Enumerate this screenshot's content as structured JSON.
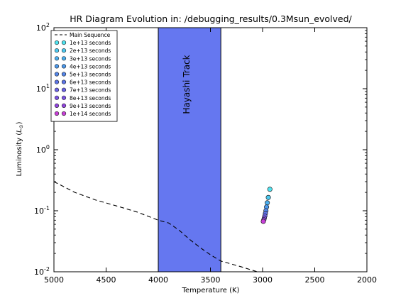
{
  "chart_data": {
    "type": "scatter",
    "title": "HR Diagram Evolution in: /debugging_results/0.3Msun_evolved/",
    "xlabel": "Temperature (K)",
    "ylabel": "Luminosity (",
    "ylabel_unit": "L",
    "ylabel_sub": "⊙",
    "ylabel_close": ")",
    "x_reversed": true,
    "xlim": [
      5000,
      2000
    ],
    "ylim": [
      0.01,
      100
    ],
    "y_scale": "log",
    "x_ticks": [
      {
        "value": 5000,
        "label": "5000"
      },
      {
        "value": 4500,
        "label": "4500"
      },
      {
        "value": 4000,
        "label": "4000"
      },
      {
        "value": 3500,
        "label": "3500"
      },
      {
        "value": 3000,
        "label": "3000"
      },
      {
        "value": 2500,
        "label": "2500"
      },
      {
        "value": 2000,
        "label": "2000"
      }
    ],
    "y_ticks": [
      {
        "value": 0.01,
        "base": "10",
        "exp": "-2"
      },
      {
        "value": 0.1,
        "base": "10",
        "exp": "-1"
      },
      {
        "value": 1,
        "base": "10",
        "exp": "0"
      },
      {
        "value": 10,
        "base": "10",
        "exp": "1"
      },
      {
        "value": 100,
        "base": "10",
        "exp": "2"
      }
    ],
    "band": {
      "label": "Hayashi Track",
      "x_range": [
        4000,
        3400
      ],
      "color": "#6577f0"
    },
    "main_sequence": {
      "name": "Main Sequence",
      "style": "dashed",
      "color": "#000000",
      "points": [
        [
          5000,
          0.3
        ],
        [
          4800,
          0.2
        ],
        [
          4600,
          0.15
        ],
        [
          4400,
          0.12
        ],
        [
          4200,
          0.095
        ],
        [
          4000,
          0.07
        ],
        [
          3900,
          0.063
        ],
        [
          3800,
          0.048
        ],
        [
          3700,
          0.034
        ],
        [
          3600,
          0.025
        ],
        [
          3500,
          0.019
        ],
        [
          3400,
          0.015
        ],
        [
          3200,
          0.012
        ],
        [
          3050,
          0.01
        ]
      ]
    },
    "series": [
      {
        "name": "1e+13 seconds",
        "color": "#4fe3f0",
        "x": 2930,
        "y": 0.225
      },
      {
        "name": "2e+13 seconds",
        "color": "#4cc8ef",
        "x": 2945,
        "y": 0.165
      },
      {
        "name": "3e+13 seconds",
        "color": "#4aaeee",
        "x": 2955,
        "y": 0.135
      },
      {
        "name": "4e+13 seconds",
        "color": "#4b98ec",
        "x": 2962,
        "y": 0.115
      },
      {
        "name": "5e+13 seconds",
        "color": "#5386ea",
        "x": 2968,
        "y": 0.1
      },
      {
        "name": "6e+13 seconds",
        "color": "#5c74e8",
        "x": 2973,
        "y": 0.09
      },
      {
        "name": "7e+13 seconds",
        "color": "#6a63e6",
        "x": 2978,
        "y": 0.082
      },
      {
        "name": "8e+13 seconds",
        "color": "#7b52e4",
        "x": 2983,
        "y": 0.076
      },
      {
        "name": "9e+13 seconds",
        "color": "#9244e1",
        "x": 2988,
        "y": 0.071
      },
      {
        "name": "1e+14 seconds",
        "color": "#c83fd8",
        "x": 2993,
        "y": 0.067
      }
    ]
  }
}
